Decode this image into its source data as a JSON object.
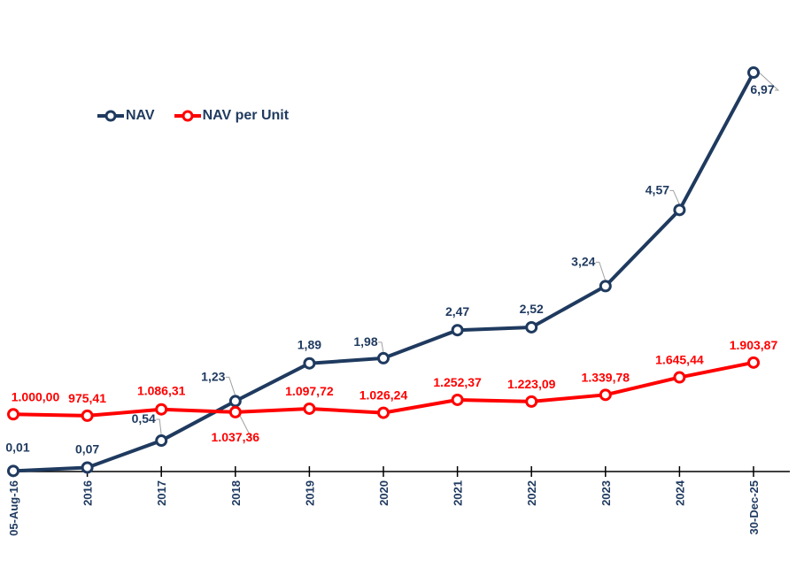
{
  "chart_data": {
    "type": "line",
    "title": "",
    "xlabel": "",
    "ylabel": "",
    "categories": [
      "05-Aug-16",
      "2016",
      "2017",
      "2018",
      "2019",
      "2020",
      "2021",
      "2022",
      "2023",
      "2024",
      "30-Dec-25"
    ],
    "series": [
      {
        "name": "NAV",
        "color": "#1f3a5f",
        "values": [
          0.01,
          0.07,
          0.54,
          1.23,
          1.89,
          1.98,
          2.47,
          2.52,
          3.24,
          4.57,
          6.97
        ],
        "labels": [
          "0,01",
          "0,07",
          "0,54",
          "1,23",
          "1,89",
          "1,98",
          "2,47",
          "2,52",
          "3,24",
          "4,57",
          "6,97"
        ]
      },
      {
        "name": "NAV per Unit",
        "color": "#ff0000",
        "values": [
          1000.0,
          975.41,
          1086.31,
          1037.36,
          1097.72,
          1026.24,
          1252.37,
          1223.09,
          1339.78,
          1645.44,
          1903.87
        ],
        "labels": [
          "1.000,00",
          "975,41",
          "1.086,31",
          "1.037,36",
          "1.097,72",
          "1.026,24",
          "1.252,37",
          "1.223,09",
          "1.339,78",
          "1.645,44",
          "1.903,87"
        ]
      }
    ],
    "ylim": [
      0,
      7
    ],
    "y2lim": [
      0,
      7000
    ],
    "grid": false,
    "legend_position": "top-left"
  }
}
